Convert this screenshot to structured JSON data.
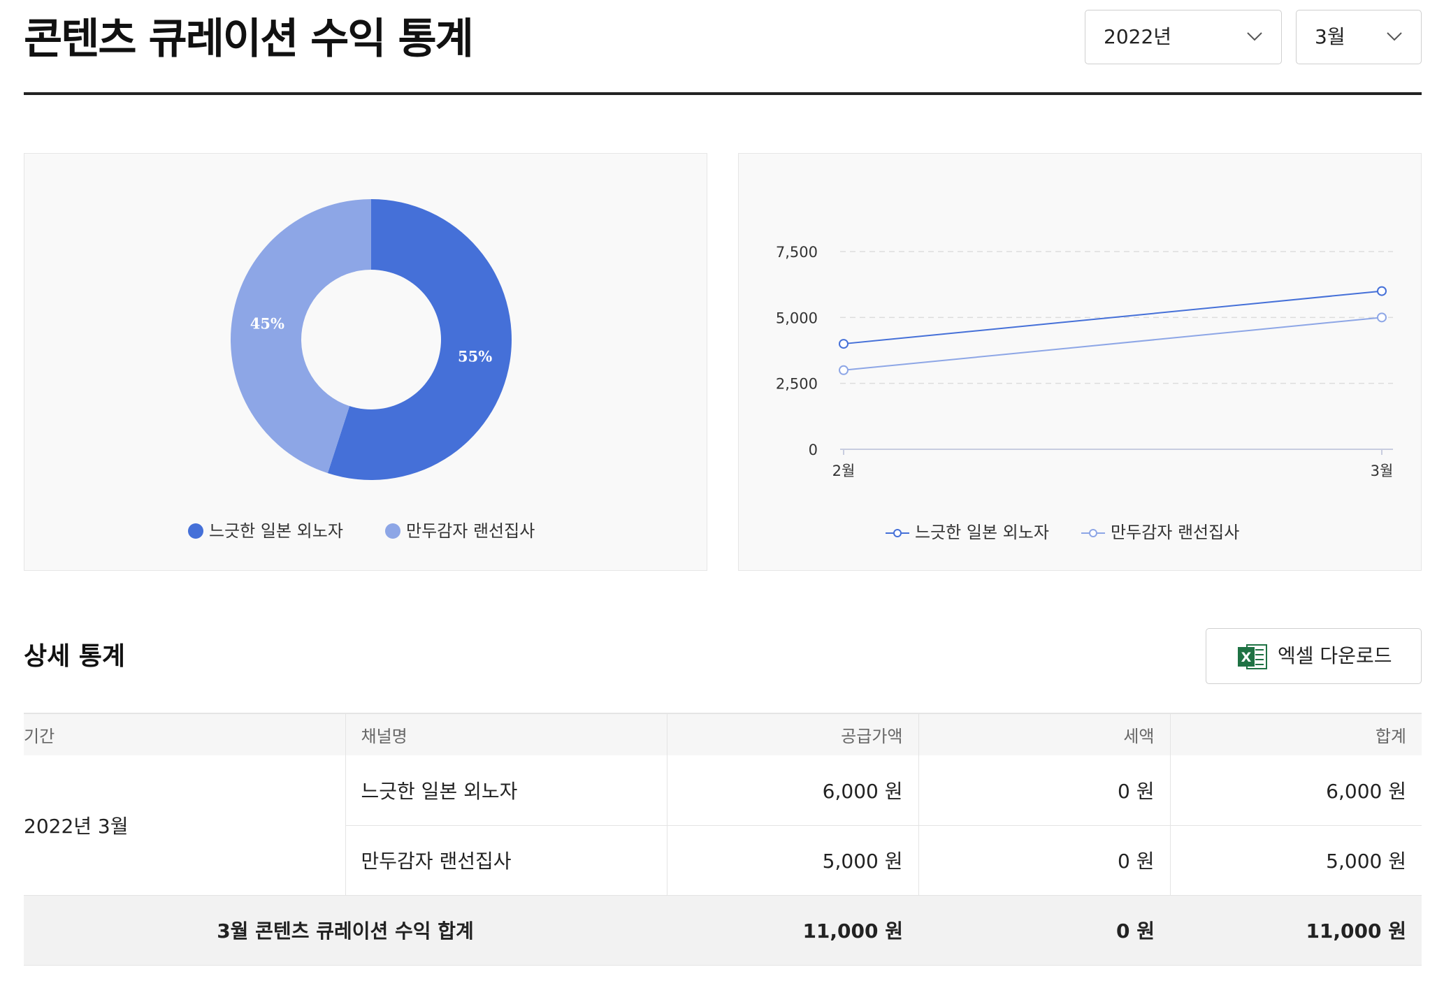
{
  "header": {
    "title": "콘텐츠 큐레이션 수익 통계",
    "year_select": "2022년",
    "month_select": "3월"
  },
  "colors": {
    "series_1": "#4570d8",
    "series_2": "#8da6e6"
  },
  "chart_data": [
    {
      "type": "pie",
      "donut": true,
      "series": [
        {
          "name": "느긋한 일본 외노자",
          "value": 55,
          "label": "55%"
        },
        {
          "name": "만두감자 랜선집사",
          "value": 45,
          "label": "45%"
        }
      ],
      "legend": [
        "느긋한 일본 외노자",
        "만두감자 랜선집사"
      ],
      "legend_position": "bottom"
    },
    {
      "type": "line",
      "categories": [
        "2월",
        "3월"
      ],
      "series": [
        {
          "name": "느긋한 일본 외노자",
          "values": [
            4000,
            6000
          ]
        },
        {
          "name": "만두감자 랜선집사",
          "values": [
            3000,
            5000
          ]
        }
      ],
      "ylim": [
        0,
        7500
      ],
      "yticks": [
        "0",
        "2,500",
        "5,000",
        "7,500"
      ],
      "grid": true,
      "legend_position": "bottom"
    }
  ],
  "detail": {
    "title": "상세 통계",
    "excel_button": "엑셀 다운로드",
    "excel_icon_letter": "X",
    "columns": [
      "기간",
      "채널명",
      "공급가액",
      "세액",
      "합계"
    ],
    "period": "2022년 3월",
    "rows": [
      {
        "channel": "느긋한 일본 외노자",
        "supply": "6,000 원",
        "tax": "0 원",
        "total": "6,000 원"
      },
      {
        "channel": "만두감자 랜선집사",
        "supply": "5,000 원",
        "tax": "0 원",
        "total": "5,000 원"
      }
    ],
    "summary": {
      "label": "3월 콘텐츠 큐레이션 수익 합계",
      "supply": "11,000 원",
      "tax": "0 원",
      "total": "11,000 원"
    }
  }
}
